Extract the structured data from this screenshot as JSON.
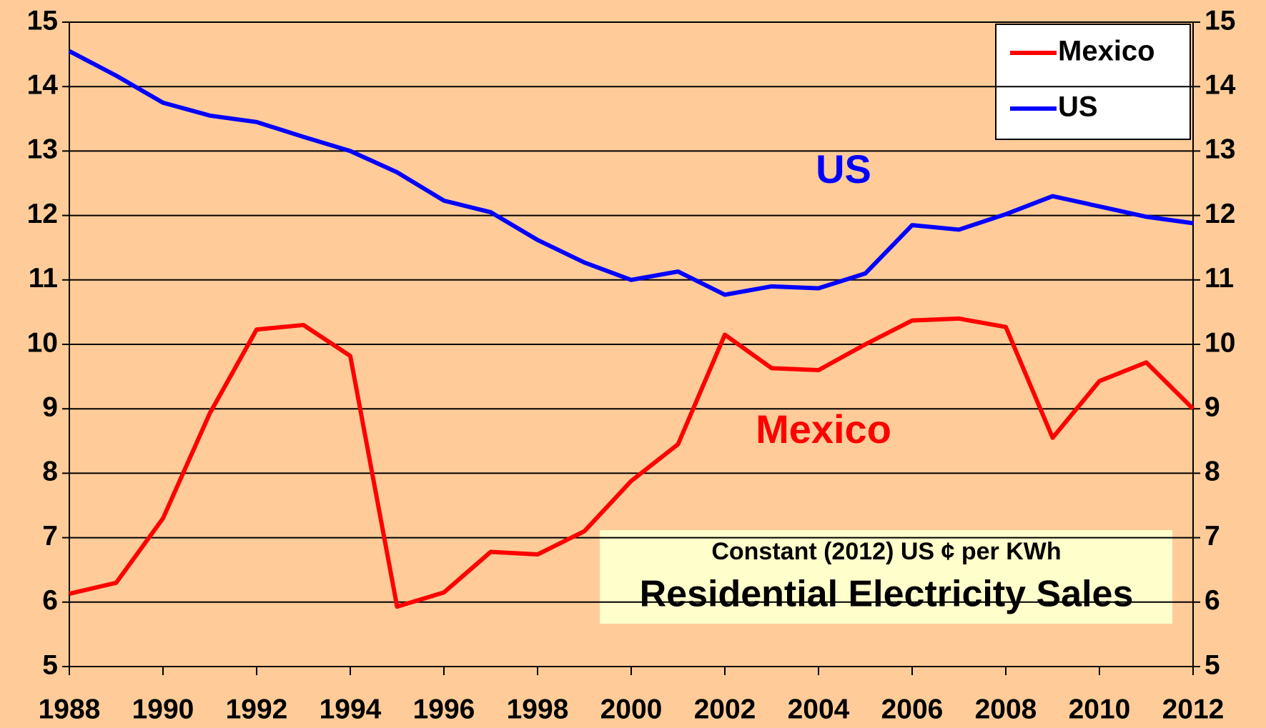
{
  "chart_data": {
    "type": "line",
    "title": "Residential Electricity Sales",
    "subtitle": "Constant (2012) US ¢ per KWh",
    "x": [
      1988,
      1989,
      1990,
      1991,
      1992,
      1993,
      1994,
      1995,
      1996,
      1997,
      1998,
      1999,
      2000,
      2001,
      2002,
      2003,
      2004,
      2005,
      2006,
      2007,
      2008,
      2009,
      2010,
      2011,
      2012
    ],
    "series": [
      {
        "name": "Mexico",
        "color": "#ff0000",
        "values": [
          6.13,
          6.3,
          7.3,
          8.93,
          10.23,
          10.3,
          9.82,
          5.93,
          6.15,
          6.78,
          6.74,
          7.1,
          7.88,
          8.45,
          10.15,
          9.63,
          9.6,
          10.0,
          10.37,
          10.4,
          10.27,
          8.55,
          9.43,
          9.72,
          9.0
        ]
      },
      {
        "name": "US",
        "color": "#0000ff",
        "values": [
          14.55,
          14.17,
          13.75,
          13.55,
          13.45,
          13.22,
          13.0,
          12.67,
          12.23,
          12.05,
          11.62,
          11.27,
          11.0,
          11.13,
          10.77,
          10.9,
          10.87,
          11.1,
          11.85,
          11.78,
          12.02,
          12.3,
          12.14,
          11.98,
          11.88
        ]
      }
    ],
    "annotations": [
      {
        "text": "US",
        "color": "#0000ff"
      },
      {
        "text": "Mexico",
        "color": "#ff0000"
      }
    ],
    "xlim": [
      1988,
      2012
    ],
    "xticks": [
      1988,
      1990,
      1992,
      1994,
      1996,
      1998,
      2000,
      2002,
      2004,
      2006,
      2008,
      2010,
      2012
    ],
    "ylim": [
      5,
      15
    ],
    "yticks": [
      5,
      6,
      7,
      8,
      9,
      10,
      11,
      12,
      13,
      14,
      15
    ],
    "y2lim": [
      5,
      15
    ],
    "y2ticks": [
      5,
      6,
      7,
      8,
      9,
      10,
      11,
      12,
      13,
      14,
      15
    ],
    "grid": true,
    "legend": "upper right"
  }
}
